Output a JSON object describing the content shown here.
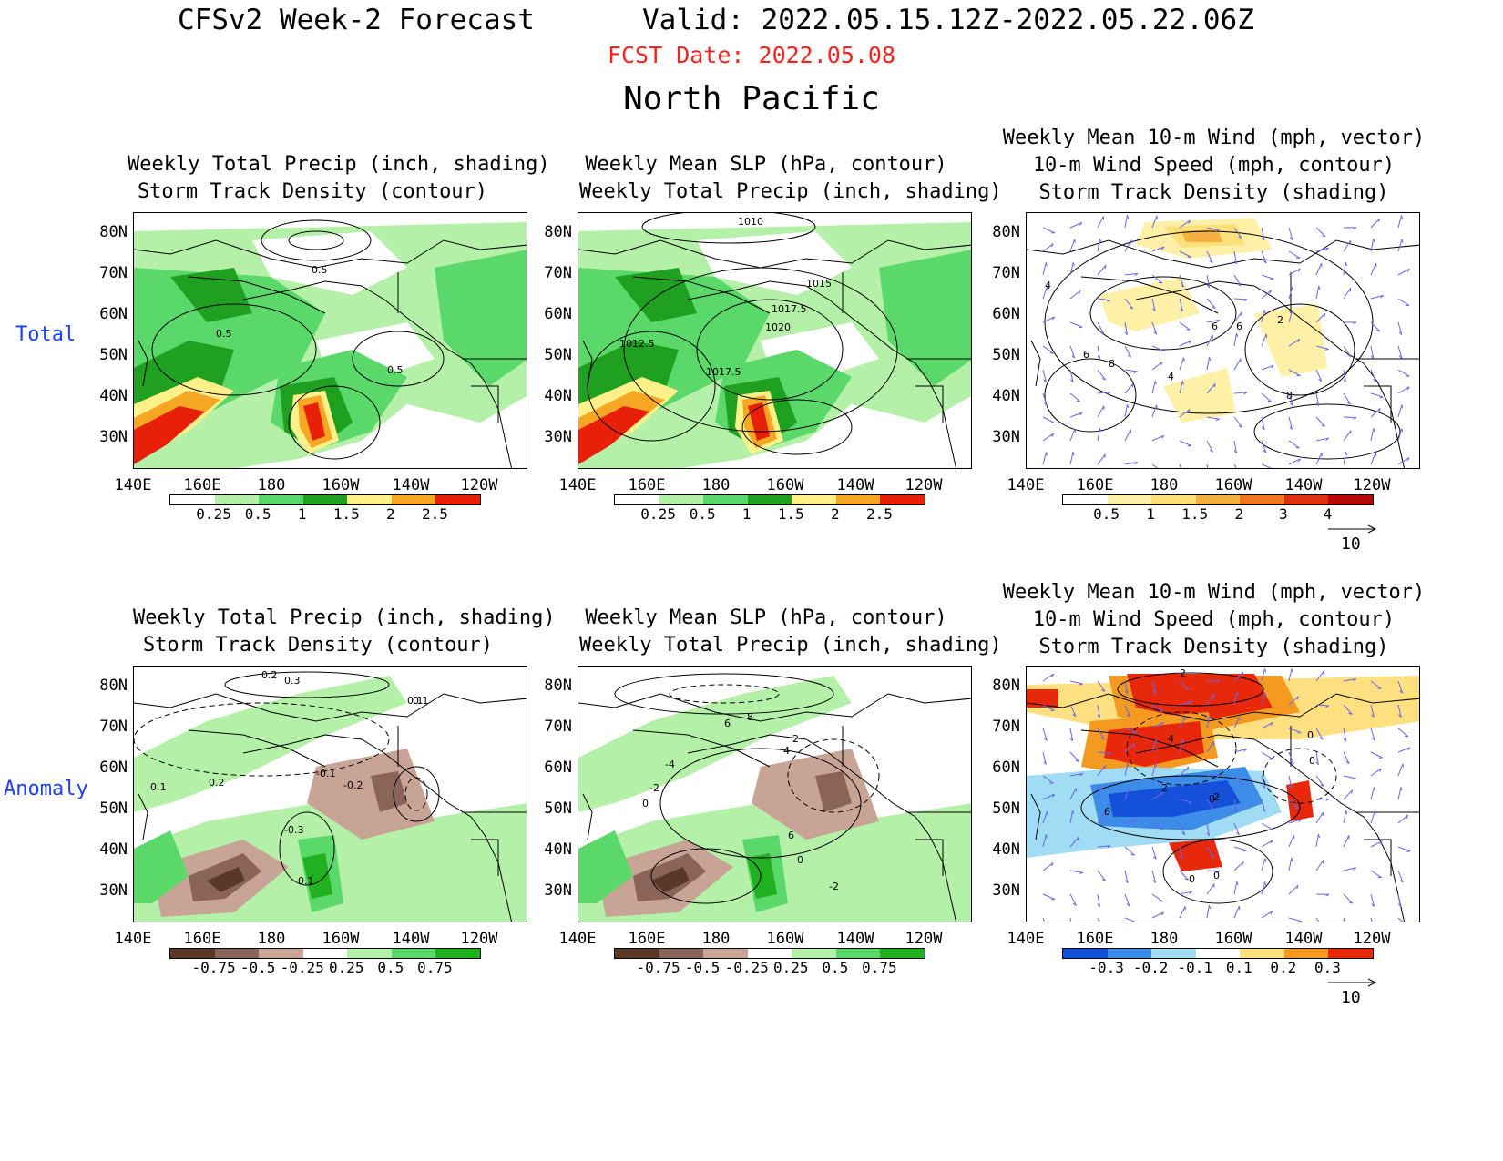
{
  "header": {
    "title": "CFSv2 Week-2 Forecast",
    "valid": "Valid: 2022.05.15.12Z-2022.05.22.06Z",
    "fcst_date": "FCST Date: 2022.05.08",
    "region": "North Pacific"
  },
  "rows": {
    "total": "Total",
    "anomaly": "Anomaly"
  },
  "panels": {
    "total_precip": {
      "line1": "Weekly Total Precip (inch, shading)",
      "line2": "Storm Track Density (contour)"
    },
    "total_slp": {
      "line1": "Weekly Mean SLP (hPa, contour)",
      "line2": "Weekly Total Precip (inch, shading)"
    },
    "total_wind": {
      "line1": "Weekly Mean 10-m Wind (mph, vector)",
      "line2": "10-m Wind Speed (mph, contour)",
      "line3": "Storm Track Density (shading)"
    },
    "anom_precip": {
      "line1": "Weekly Total Precip (inch, shading)",
      "line2": "Storm Track Density (contour)"
    },
    "anom_slp": {
      "line1": "Weekly Mean SLP (hPa, contour)",
      "line2": "Weekly Total Precip (inch, shading)"
    },
    "anom_wind": {
      "line1": "Weekly Mean 10-m Wind (mph, vector)",
      "line2": "10-m Wind Speed (mph, contour)",
      "line3": "Storm Track Density (shading)"
    }
  },
  "axes": {
    "lat_ticks": [
      "80N",
      "70N",
      "60N",
      "50N",
      "40N",
      "30N"
    ],
    "lon_ticks": [
      "140E",
      "160E",
      "180",
      "160W",
      "140W",
      "120W"
    ]
  },
  "contour_labels": {
    "total_precip": [
      "0.5",
      "0.5",
      "0.5"
    ],
    "total_slp": [
      "1010",
      "1015",
      "1017.5",
      "1020",
      "1012.5",
      "1017.5"
    ],
    "total_wind": [
      "4",
      "6",
      "6",
      "6",
      "8",
      "8",
      "4",
      "2"
    ],
    "anom_precip": [
      "0.2",
      "0.3",
      "0.1",
      "0.1",
      "0.2",
      "-0.1",
      "-0.2",
      "-0.3",
      "0.1",
      "0.1"
    ],
    "anom_slp": [
      "6",
      "8",
      "2",
      "4",
      "-4",
      "-2",
      "0",
      "6",
      "0",
      "-2"
    ],
    "anom_wind": [
      "2",
      "2",
      "4",
      "0",
      "0",
      "2",
      "0",
      "6",
      "0",
      "0"
    ]
  },
  "colorbars": {
    "precip_total": {
      "labels": [
        "0.25",
        "0.5",
        "1",
        "1.5",
        "2",
        "2.5"
      ],
      "colors": [
        "#ffffff",
        "#b4f0a8",
        "#5ad86a",
        "#20a020",
        "#fff08a",
        "#f5a623",
        "#e8200a"
      ]
    },
    "std_total": {
      "labels": [
        "0.5",
        "1",
        "1.5",
        "2",
        "3",
        "4"
      ],
      "colors": [
        "#ffffff",
        "#fff0a8",
        "#fde07a",
        "#f5b040",
        "#f07820",
        "#e03010",
        "#b80808"
      ]
    },
    "precip_anom": {
      "labels": [
        "-0.75",
        "-0.5",
        "-0.25",
        "0.25",
        "0.5",
        "0.75"
      ],
      "colors": [
        "#5a3828",
        "#8a6458",
        "#c8a496",
        "#ffffff",
        "#b4f0a8",
        "#5ad86a",
        "#20b020"
      ]
    },
    "std_anom": {
      "labels": [
        "-0.3",
        "-0.2",
        "-0.1",
        "0.1",
        "0.2",
        "0.3"
      ],
      "colors": [
        "#1450d8",
        "#3c8ce8",
        "#a0dcf4",
        "#ffffff",
        "#ffe080",
        "#f59a20",
        "#e8280a"
      ]
    }
  },
  "vector_ref": "10",
  "colors": {
    "red_text": "#ff2020",
    "blue_text": "#1f3fff",
    "vector": "#6666ee"
  }
}
